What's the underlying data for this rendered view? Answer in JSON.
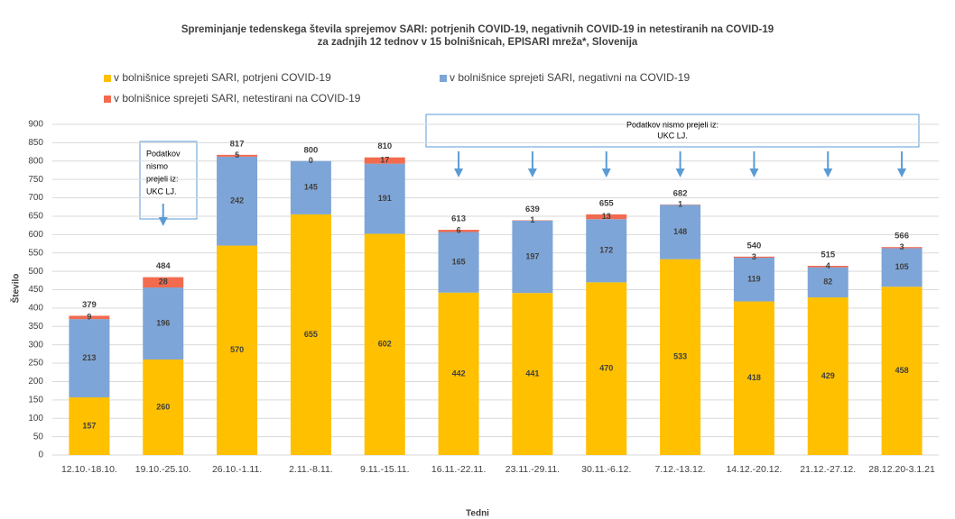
{
  "chart_data": {
    "type": "stacked_bar",
    "title": [
      "Spreminjanje tedenskega števila sprejemov SARI: potrjenih COVID-19, negativnih COVID-19 in netestiranih na COVID-19",
      "za zadnjih 12 tednov v 15 bolnišnicah, EPISARI mreža*, Slovenija"
    ],
    "xlabel": "Tedni",
    "ylabel": "Število",
    "categories": [
      "12.10.-18.10.",
      "19.10.-25.10.",
      "26.10.-1.11.",
      "2.11.-8.11.",
      "9.11.-15.11.",
      "16.11.-22.11.",
      "23.11.-29.11.",
      "30.11.-6.12.",
      "7.12.-13.12.",
      "14.12.-20.12.",
      "21.12.-27.12.",
      "28.12.20-3.1.21"
    ],
    "series": [
      {
        "name": "v bolnišnice sprejeti SARI, potrjeni COVID-19",
        "color": "#ffc000",
        "values": [
          157,
          260,
          570,
          655,
          602,
          442,
          441,
          470,
          533,
          418,
          429,
          458
        ]
      },
      {
        "name": "v bolnišnice sprejeti SARI, negativni na COVID-19",
        "color": "#7ea5d7",
        "values": [
          213,
          196,
          242,
          145,
          191,
          165,
          197,
          172,
          148,
          119,
          82,
          105
        ]
      },
      {
        "name": "v bolnišnice sprejeti SARI, netestirani na COVID-19",
        "color": "#f26b4f",
        "values": [
          9,
          28,
          5,
          0,
          17,
          6,
          1,
          13,
          1,
          3,
          4,
          3
        ]
      }
    ],
    "totals": [
      379,
      484,
      817,
      800,
      810,
      613,
      639,
      655,
      682,
      540,
      515,
      566
    ],
    "ylim": [
      0,
      900
    ],
    "yticks": [
      0,
      50,
      100,
      150,
      200,
      250,
      300,
      350,
      400,
      450,
      500,
      550,
      600,
      650,
      700,
      750,
      800,
      850,
      900
    ],
    "grid": true,
    "annotations": [
      [
        "Podatkov",
        "nismo",
        "prejeli iz:",
        "UKC LJ."
      ],
      [
        "Podatkov nismo prejeli iz:",
        "UKC LJ."
      ]
    ]
  }
}
